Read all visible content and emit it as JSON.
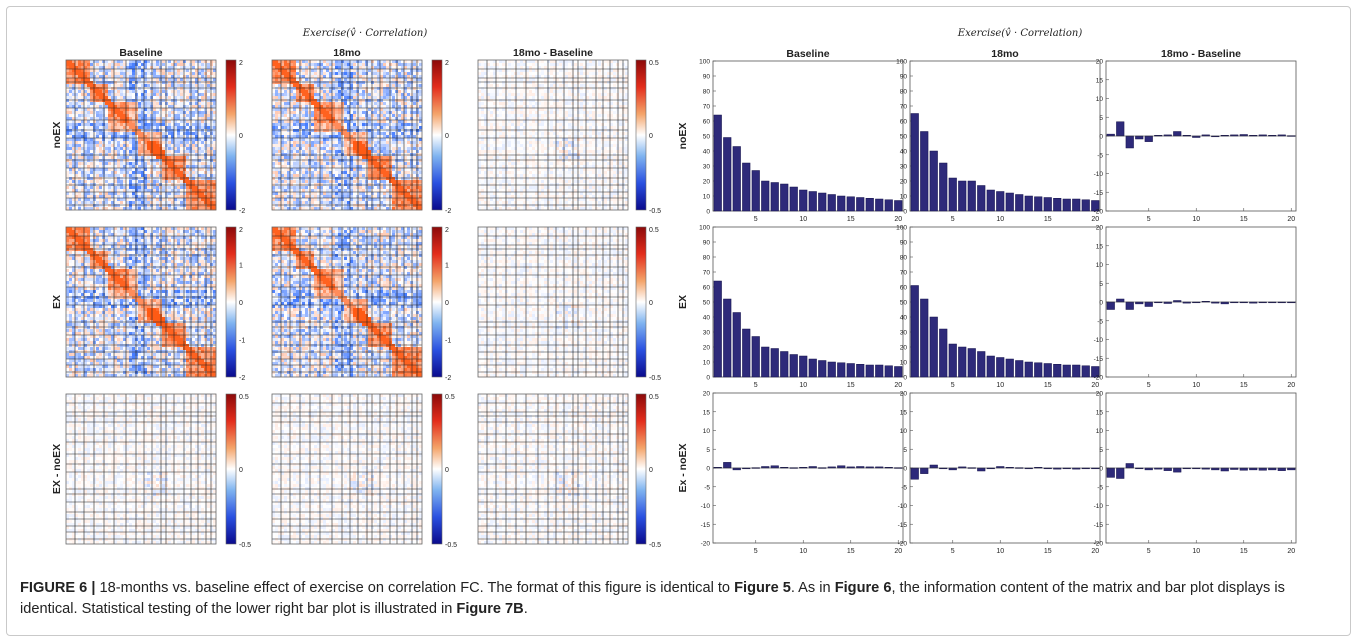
{
  "figure": {
    "left_panel_title": "Exercise(v̂ · Correlation)",
    "right_panel_title": "Exercise(v̂ · Correlation)",
    "column_titles": [
      "Baseline",
      "18mo",
      "18mo - Baseline"
    ],
    "left_row_labels": [
      "noEX",
      "EX",
      "EX - noEX"
    ],
    "right_row_labels": [
      "noEX",
      "EX",
      "Ex - noEX"
    ],
    "colorbars": [
      [
        {
          "top": "2",
          "mid": "0",
          "bot": "-2"
        },
        {
          "top": "2",
          "mid": "0",
          "bot": "-2"
        },
        {
          "top": "0.5",
          "mid": "0",
          "bot": "-0.5"
        }
      ],
      [
        {
          "top": "2",
          "mid": "0",
          "bot": "-2",
          "extra": [
            "1",
            "-1"
          ]
        },
        {
          "top": "2",
          "mid": "0",
          "bot": "-2",
          "extra": [
            "1",
            "-1"
          ]
        },
        {
          "top": "0.5",
          "mid": "0",
          "bot": "-0.5"
        }
      ],
      [
        {
          "top": "0.5",
          "mid": "0",
          "bot": "-0.5"
        },
        {
          "top": "0.5",
          "mid": "0",
          "bot": "-0.5"
        },
        {
          "top": "0.5",
          "mid": "0",
          "bot": "-0.5"
        }
      ]
    ],
    "colors": {
      "bar": "#2e2a7a",
      "diverging_low": "#0a0a8c",
      "diverging_mid": "#ffffff",
      "diverging_high": "#8c0a0a"
    }
  },
  "caption": {
    "label": "FIGURE 6 |",
    "t1": " 18-months vs. baseline effect of exercise on correlation FC. The format of this figure is identical to ",
    "ref1": "Figure 5",
    "t2": ". As in ",
    "ref2": "Figure 6",
    "t3": ", the information content of the matrix and bar plot displays is identical. Statistical testing of the lower right bar plot is illustrated in ",
    "ref3": "Figure 7B",
    "t4": "."
  },
  "chart_data": {
    "type": "bar",
    "x": [
      1,
      2,
      3,
      4,
      5,
      6,
      7,
      8,
      9,
      10,
      11,
      12,
      13,
      14,
      15,
      16,
      17,
      18,
      19,
      20
    ],
    "xticks": [
      5,
      10,
      15,
      20
    ],
    "panels": [
      {
        "row": "noEX",
        "col": "Baseline",
        "ylim": [
          0,
          100
        ],
        "yticks": [
          0,
          10,
          20,
          30,
          40,
          50,
          60,
          70,
          80,
          90,
          100
        ],
        "values": [
          64,
          49,
          43,
          32,
          27,
          20,
          19,
          18,
          16,
          14,
          13,
          12,
          11,
          10,
          9.5,
          9,
          8.5,
          8,
          7.5,
          7
        ]
      },
      {
        "row": "noEX",
        "col": "18mo",
        "ylim": [
          0,
          100
        ],
        "yticks": [
          0,
          10,
          20,
          30,
          40,
          50,
          60,
          70,
          80,
          90,
          100
        ],
        "values": [
          65,
          53,
          40,
          32,
          22,
          20,
          20,
          17,
          14,
          13,
          12,
          11,
          10,
          9.5,
          9,
          8.5,
          8,
          8,
          7.5,
          7
        ]
      },
      {
        "row": "noEX",
        "col": "18mo - Baseline",
        "ylim": [
          -20,
          20
        ],
        "yticks": [
          -20,
          -15,
          -10,
          -5,
          0,
          5,
          10,
          15,
          20
        ],
        "values": [
          0.5,
          3.8,
          -3.2,
          -0.8,
          -1.5,
          0.2,
          0.3,
          1.2,
          0.2,
          -0.4,
          0.3,
          -0.2,
          0.2,
          0.3,
          0.4,
          0.2,
          0.3,
          0.2,
          0.3,
          0.1
        ]
      },
      {
        "row": "EX",
        "col": "Baseline",
        "ylim": [
          0,
          100
        ],
        "yticks": [
          0,
          10,
          20,
          30,
          40,
          50,
          60,
          70,
          80,
          90,
          100
        ],
        "values": [
          64,
          52,
          43,
          32,
          27,
          20,
          19,
          17,
          15,
          14,
          12,
          11,
          10,
          9.5,
          9,
          8.5,
          8,
          8,
          7.5,
          7
        ]
      },
      {
        "row": "EX",
        "col": "18mo",
        "ylim": [
          0,
          100
        ],
        "yticks": [
          0,
          10,
          20,
          30,
          40,
          50,
          60,
          70,
          80,
          90,
          100
        ],
        "values": [
          61,
          52,
          40,
          32,
          22,
          20,
          19,
          17,
          14,
          13,
          12,
          11,
          10,
          9.5,
          9,
          8.5,
          8,
          8,
          7.5,
          7
        ]
      },
      {
        "row": "EX",
        "col": "18mo - Baseline",
        "ylim": [
          -20,
          20
        ],
        "yticks": [
          -20,
          -15,
          -10,
          -5,
          0,
          5,
          10,
          15,
          20
        ],
        "values": [
          -2,
          0.8,
          -2,
          -0.5,
          -1.2,
          -0.2,
          -0.4,
          0.4,
          -0.3,
          -0.2,
          0.2,
          -0.3,
          -0.5,
          -0.2,
          -0.1,
          -0.3,
          -0.2,
          -0.2,
          -0.2,
          -0.1
        ]
      },
      {
        "row": "Ex - noEX",
        "col": "Baseline",
        "ylim": [
          -20,
          20
        ],
        "yticks": [
          -20,
          -15,
          -10,
          -5,
          0,
          5,
          10,
          15,
          20
        ],
        "values": [
          0.2,
          1.5,
          -0.5,
          -0.2,
          0.1,
          0.4,
          0.6,
          0.2,
          0.1,
          0.2,
          0.4,
          0.1,
          0.3,
          0.6,
          0.3,
          0.4,
          0.3,
          0.3,
          0.2,
          0.1
        ]
      },
      {
        "row": "Ex - noEX",
        "col": "18mo",
        "ylim": [
          -20,
          20
        ],
        "yticks": [
          -20,
          -15,
          -10,
          -5,
          0,
          5,
          10,
          15,
          20
        ],
        "values": [
          -3,
          -1.5,
          0.8,
          -0.2,
          -0.5,
          0.3,
          0.1,
          -0.8,
          -0.2,
          0.4,
          0.2,
          0.1,
          -0.2,
          0.2,
          -0.2,
          -0.3,
          -0.2,
          -0.3,
          -0.2,
          -0.1
        ]
      },
      {
        "row": "Ex - noEX",
        "col": "18mo - Baseline",
        "ylim": [
          -20,
          20
        ],
        "yticks": [
          -20,
          -15,
          -10,
          -5,
          0,
          5,
          10,
          15,
          20
        ],
        "values": [
          -2.5,
          -2.8,
          1.2,
          -0.2,
          -0.5,
          -0.3,
          -0.7,
          -1.1,
          -0.2,
          -0.1,
          -0.3,
          -0.5,
          -0.8,
          -0.4,
          -0.6,
          -0.5,
          -0.6,
          -0.5,
          -0.7,
          -0.5
        ]
      }
    ]
  }
}
